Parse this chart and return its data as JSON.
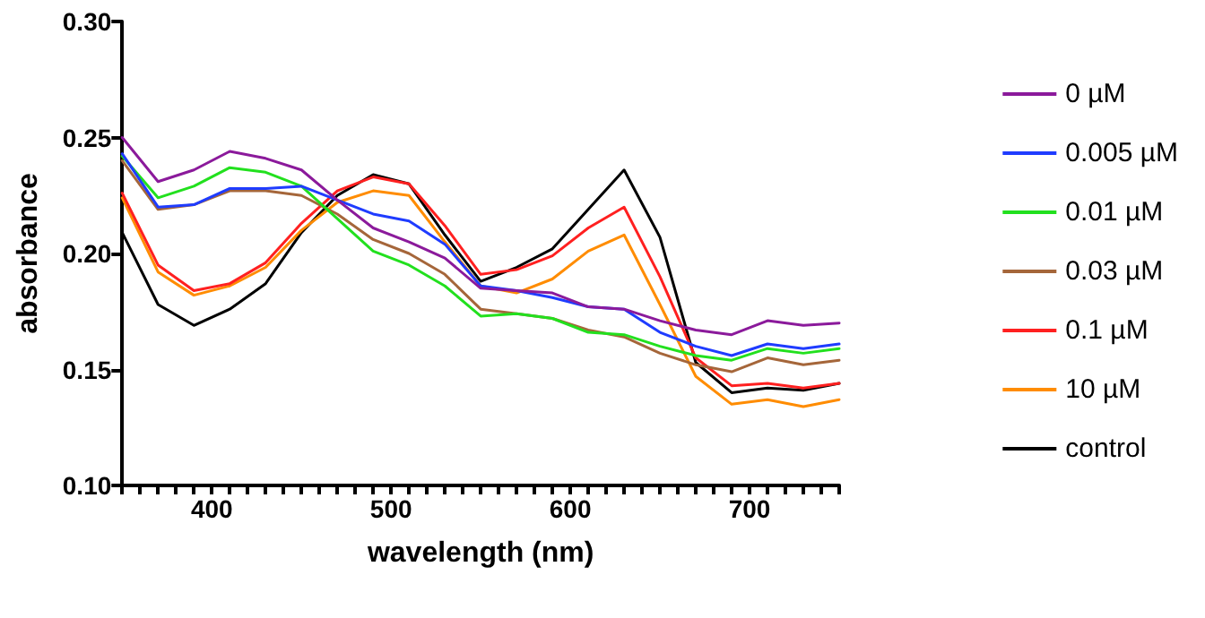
{
  "chart_data": {
    "type": "line",
    "xlabel": "wavelength (nm)",
    "ylabel": "absorbance",
    "x": [
      350,
      370,
      390,
      410,
      430,
      450,
      470,
      490,
      510,
      530,
      550,
      570,
      590,
      610,
      630,
      650,
      670,
      690,
      710,
      730,
      750
    ],
    "xlim": [
      350,
      750
    ],
    "xticks": [
      {
        "value": 350,
        "label": null
      },
      {
        "value": 360,
        "label": null
      },
      {
        "value": 370,
        "label": null
      },
      {
        "value": 380,
        "label": null
      },
      {
        "value": 390,
        "label": null
      },
      400,
      {
        "value": 410,
        "label": null
      },
      {
        "value": 420,
        "label": null
      },
      {
        "value": 430,
        "label": null
      },
      {
        "value": 440,
        "label": null
      },
      {
        "value": 450,
        "label": null
      },
      {
        "value": 460,
        "label": null
      },
      {
        "value": 470,
        "label": null
      },
      {
        "value": 480,
        "label": null
      },
      {
        "value": 490,
        "label": null
      },
      500,
      {
        "value": 510,
        "label": null
      },
      {
        "value": 520,
        "label": null
      },
      {
        "value": 530,
        "label": null
      },
      {
        "value": 540,
        "label": null
      },
      {
        "value": 550,
        "label": null
      },
      {
        "value": 560,
        "label": null
      },
      {
        "value": 570,
        "label": null
      },
      {
        "value": 580,
        "label": null
      },
      {
        "value": 590,
        "label": null
      },
      600,
      {
        "value": 610,
        "label": null
      },
      {
        "value": 620,
        "label": null
      },
      {
        "value": 630,
        "label": null
      },
      {
        "value": 640,
        "label": null
      },
      {
        "value": 650,
        "label": null
      },
      {
        "value": 660,
        "label": null
      },
      {
        "value": 670,
        "label": null
      },
      {
        "value": 680,
        "label": null
      },
      {
        "value": 690,
        "label": null
      },
      700,
      {
        "value": 710,
        "label": null
      },
      {
        "value": 720,
        "label": null
      },
      {
        "value": 730,
        "label": null
      },
      {
        "value": 740,
        "label": null
      },
      {
        "value": 750,
        "label": null
      }
    ],
    "ylim": [
      0.1,
      0.3
    ],
    "yticks": [
      {
        "value": 0.1,
        "label": "0.10"
      },
      0.15,
      {
        "value": 0.2,
        "label": "0.20"
      },
      0.25,
      {
        "value": 0.3,
        "label": "0.30"
      }
    ],
    "grid": false,
    "legend": "right",
    "marker": "none",
    "line_style": "solid",
    "series": [
      {
        "name": "0 µM",
        "color": "#8b1a9b",
        "values": [
          0.25,
          0.231,
          0.236,
          0.244,
          0.241,
          0.236,
          0.223,
          0.211,
          0.205,
          0.198,
          0.185,
          0.184,
          0.183,
          0.177,
          0.176,
          0.171,
          0.167,
          0.165,
          0.171,
          0.169,
          0.17
        ]
      },
      {
        "name": "0.005 µM",
        "color": "#1f3cff",
        "values": [
          0.243,
          0.22,
          0.221,
          0.228,
          0.228,
          0.229,
          0.223,
          0.217,
          0.214,
          0.204,
          0.186,
          0.184,
          0.181,
          0.177,
          0.176,
          0.166,
          0.16,
          0.156,
          0.161,
          0.159,
          0.161
        ]
      },
      {
        "name": "0.01 µM",
        "color": "#22e01e",
        "values": [
          0.242,
          0.224,
          0.229,
          0.237,
          0.235,
          0.229,
          0.215,
          0.201,
          0.195,
          0.186,
          0.173,
          0.174,
          0.172,
          0.166,
          0.165,
          0.16,
          0.156,
          0.154,
          0.159,
          0.157,
          0.159
        ]
      },
      {
        "name": "0.03 µM",
        "color": "#a5663a",
        "values": [
          0.24,
          0.219,
          0.221,
          0.227,
          0.227,
          0.225,
          0.217,
          0.206,
          0.2,
          0.191,
          0.176,
          0.174,
          0.172,
          0.167,
          0.164,
          0.157,
          0.152,
          0.149,
          0.155,
          0.152,
          0.154
        ]
      },
      {
        "name": "0.1 µM",
        "color": "#ff2020",
        "values": [
          0.226,
          0.195,
          0.184,
          0.187,
          0.196,
          0.213,
          0.227,
          0.233,
          0.23,
          0.212,
          0.191,
          0.193,
          0.199,
          0.211,
          0.22,
          0.19,
          0.155,
          0.143,
          0.144,
          0.142,
          0.144
        ]
      },
      {
        "name": "10 µM",
        "color": "#ff8c00",
        "values": [
          0.224,
          0.192,
          0.182,
          0.186,
          0.194,
          0.21,
          0.222,
          0.227,
          0.225,
          0.205,
          0.186,
          0.183,
          0.189,
          0.201,
          0.208,
          0.178,
          0.147,
          0.135,
          0.137,
          0.134,
          0.137
        ]
      },
      {
        "name": "control",
        "color": "#000000",
        "values": [
          0.209,
          0.178,
          0.169,
          0.176,
          0.187,
          0.209,
          0.225,
          0.234,
          0.23,
          0.208,
          0.188,
          0.194,
          0.202,
          0.219,
          0.236,
          0.207,
          0.153,
          0.14,
          0.142,
          0.141,
          0.144
        ]
      }
    ]
  }
}
